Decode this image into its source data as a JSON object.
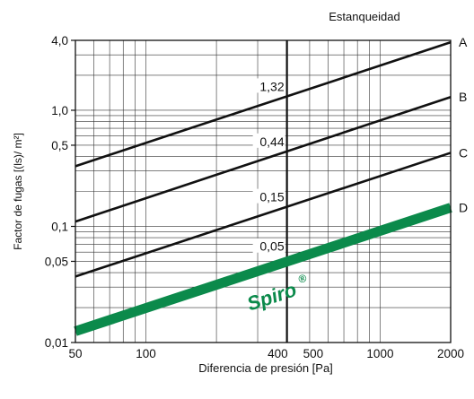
{
  "chart_data": {
    "type": "line",
    "title": "",
    "xlabel": "Diferencia de presión [Pa]",
    "ylabel": "Factor de fugas [(ls)/ m²]",
    "legend_title": "Estanqueidad",
    "x_scale": "log",
    "y_scale": "log",
    "xlim": [
      50,
      2000
    ],
    "ylim": [
      0.01,
      4.0
    ],
    "grid": true,
    "x_ticks": [
      {
        "value": 50,
        "label": "50"
      },
      {
        "value": 100,
        "label": "100"
      },
      {
        "value": 400,
        "label": "400"
      },
      {
        "value": 500,
        "label": "500"
      },
      {
        "value": 1000,
        "label": "1000"
      },
      {
        "value": 2000,
        "label": "2000"
      }
    ],
    "y_ticks": [
      {
        "value": 4.0,
        "label": "4,0"
      },
      {
        "value": 1.0,
        "label": "1,0"
      },
      {
        "value": 0.5,
        "label": "0,5"
      },
      {
        "value": 0.1,
        "label": "0,1"
      },
      {
        "value": 0.05,
        "label": "0,05"
      },
      {
        "value": 0.01,
        "label": "0,01"
      }
    ],
    "reference_x": 400,
    "series": [
      {
        "name": "A",
        "x": [
          50,
          2000
        ],
        "values": [
          0.33,
          3.85
        ],
        "point_label": "1,32",
        "color": "#111111"
      },
      {
        "name": "B",
        "x": [
          50,
          2000
        ],
        "values": [
          0.11,
          1.3
        ],
        "point_label": "0,44",
        "color": "#111111"
      },
      {
        "name": "C",
        "x": [
          50,
          2000
        ],
        "values": [
          0.037,
          0.43
        ],
        "point_label": "0,15",
        "color": "#111111"
      },
      {
        "name": "D",
        "x": [
          50,
          2000
        ],
        "values": [
          0.0125,
          0.145
        ],
        "point_label": "0,05",
        "color": "#0b8a4b"
      }
    ],
    "annotation": {
      "text": "Spiro",
      "mark": "®",
      "color": "#0b8a4b"
    }
  }
}
